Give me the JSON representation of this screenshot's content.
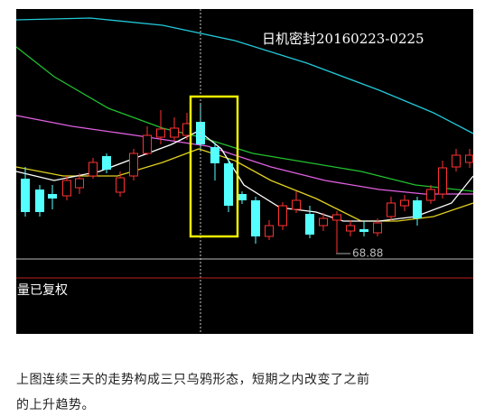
{
  "chart": {
    "title": "日机密封20160223-0225",
    "low_label": "68.88",
    "volume_label": "量已复权"
  },
  "caption": {
    "lines": [
      "上图连续三天的走势构成三只乌鸦形态，短期之内改变了之前",
      "的上升趋势。"
    ]
  }
}
